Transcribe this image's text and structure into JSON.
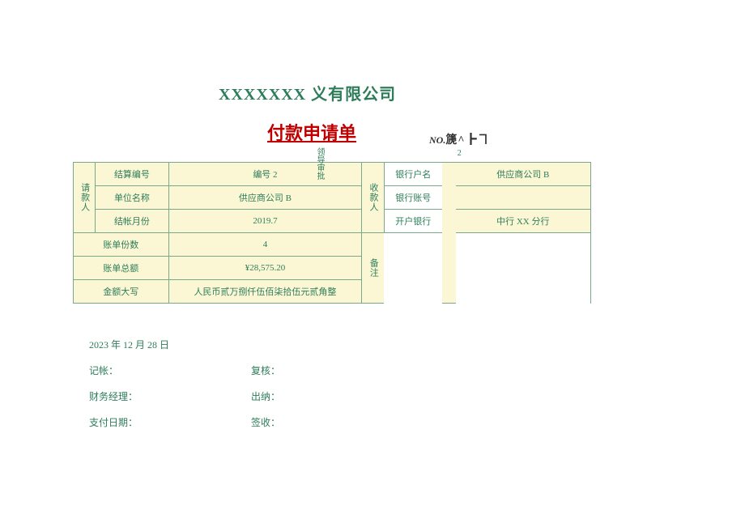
{
  "company": "XXXXXXX  义有限公司",
  "title": "付款申请单",
  "no_label": "NO.",
  "no_value": "篪^┣ヿ",
  "no_sub": "2",
  "approval_label": "领导审批",
  "payer_label": "请款人",
  "settle_no_label": "结算编号",
  "settle_no_value": "编号 2",
  "unit_label": "单位名称",
  "unit_value": "供应商公司 B",
  "month_label": "结帐月份",
  "month_value": "2019.7",
  "payee_label": "收款人",
  "bank_name_label": "银行户名",
  "bank_name_value": "供应商公司 B",
  "bank_acct_label": "银行账号",
  "bank_acct_value": "",
  "bank_open_label": "开户银行",
  "bank_open_value": "中行 XX 分行",
  "bill_count_label": "账单份数",
  "bill_count_value": "4",
  "bill_total_label": "账单总额",
  "bill_total_value": "¥28,575.20",
  "remark_label": "备注",
  "remark_value": "",
  "amount_cn_label": "金额大写",
  "amount_cn_value": "人民币贰万捌仟伍佰柒拾伍元贰角整",
  "date_text": "2023 年 12 月 28 日",
  "sig_book": "记帐：",
  "sig_review": "复核：",
  "sig_fin_mgr": "财务经理：",
  "sig_cashier": "出纳：",
  "sig_pay_date": "支付日期：",
  "sig_receive": "签收："
}
